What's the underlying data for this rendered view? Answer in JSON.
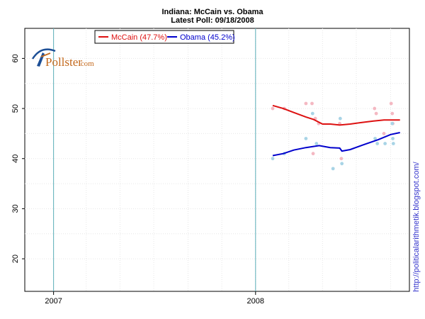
{
  "chart_data": {
    "type": "line",
    "title": "Indiana: McCain vs. Obama",
    "subtitle": "Latest Poll: 09/18/2008",
    "xlabel": "",
    "ylabel": "",
    "xlim": [
      "2006-11-10",
      "2008-10-05"
    ],
    "ylim": [
      13.5,
      66
    ],
    "x_ticks": [
      "2007",
      "2008"
    ],
    "y_ticks": [
      20,
      30,
      40,
      50,
      60
    ],
    "grid": true,
    "legend_position": "top-left",
    "series": [
      {
        "name": "McCain (47.7%)",
        "color": "#dd1111",
        "trend": [
          [
            "2008-02-01",
            50.6
          ],
          [
            "2008-02-20",
            50.0
          ],
          [
            "2008-03-10",
            49.2
          ],
          [
            "2008-04-01",
            48.3
          ],
          [
            "2008-04-15",
            47.8
          ],
          [
            "2008-05-01",
            46.9
          ],
          [
            "2008-05-15",
            46.9
          ],
          [
            "2008-06-01",
            46.7
          ],
          [
            "2008-06-20",
            46.9
          ],
          [
            "2008-07-10",
            47.2
          ],
          [
            "2008-08-01",
            47.5
          ],
          [
            "2008-08-20",
            47.7
          ],
          [
            "2008-09-18",
            47.7
          ]
        ],
        "points": [
          [
            "2008-02-01",
            50
          ],
          [
            "2008-02-22",
            50
          ],
          [
            "2008-04-01",
            51
          ],
          [
            "2008-04-12",
            51
          ],
          [
            "2008-04-18",
            48
          ],
          [
            "2008-04-24",
            47
          ],
          [
            "2008-04-14",
            41
          ],
          [
            "2008-06-01",
            47
          ],
          [
            "2008-06-04",
            40
          ],
          [
            "2008-08-03",
            50
          ],
          [
            "2008-08-06",
            49
          ],
          [
            "2008-08-20",
            45
          ],
          [
            "2008-09-02",
            51
          ],
          [
            "2008-09-04",
            49
          ],
          [
            "2008-09-05",
            47
          ]
        ]
      },
      {
        "name": "Obama (45.2%)",
        "color": "#0000cc",
        "trend": [
          [
            "2008-02-01",
            40.6
          ],
          [
            "2008-02-20",
            41.0
          ],
          [
            "2008-03-10",
            41.7
          ],
          [
            "2008-04-01",
            42.2
          ],
          [
            "2008-04-25",
            42.6
          ],
          [
            "2008-05-15",
            42.2
          ],
          [
            "2008-06-01",
            42.1
          ],
          [
            "2008-06-05",
            41.5
          ],
          [
            "2008-06-20",
            41.8
          ],
          [
            "2008-07-15",
            42.8
          ],
          [
            "2008-08-10",
            43.8
          ],
          [
            "2008-09-01",
            44.8
          ],
          [
            "2008-09-18",
            45.2
          ]
        ],
        "points": [
          [
            "2008-02-01",
            40
          ],
          [
            "2008-02-22",
            41
          ],
          [
            "2008-04-01",
            44
          ],
          [
            "2008-04-13",
            49
          ],
          [
            "2008-04-20",
            43
          ],
          [
            "2008-05-20",
            38
          ],
          [
            "2008-06-02",
            48
          ],
          [
            "2008-06-05",
            39
          ],
          [
            "2008-08-04",
            44
          ],
          [
            "2008-08-08",
            43
          ],
          [
            "2008-08-22",
            43
          ],
          [
            "2008-09-04",
            47
          ],
          [
            "2008-09-05",
            44
          ],
          [
            "2008-09-06",
            43
          ]
        ]
      }
    ]
  },
  "logo": {
    "main": "Pollster",
    "sub": ".com",
    "icon": "pollster-swoosh-icon"
  },
  "side_url": "http://politicalarithmetik.blogspot.com/",
  "colors": {
    "vertical_markers": "#5aaeb8",
    "mccain_points": "#f4b8c2",
    "obama_points": "#a8d4e6",
    "grid": "#e6e6e6",
    "side_url": "#3333cc"
  }
}
